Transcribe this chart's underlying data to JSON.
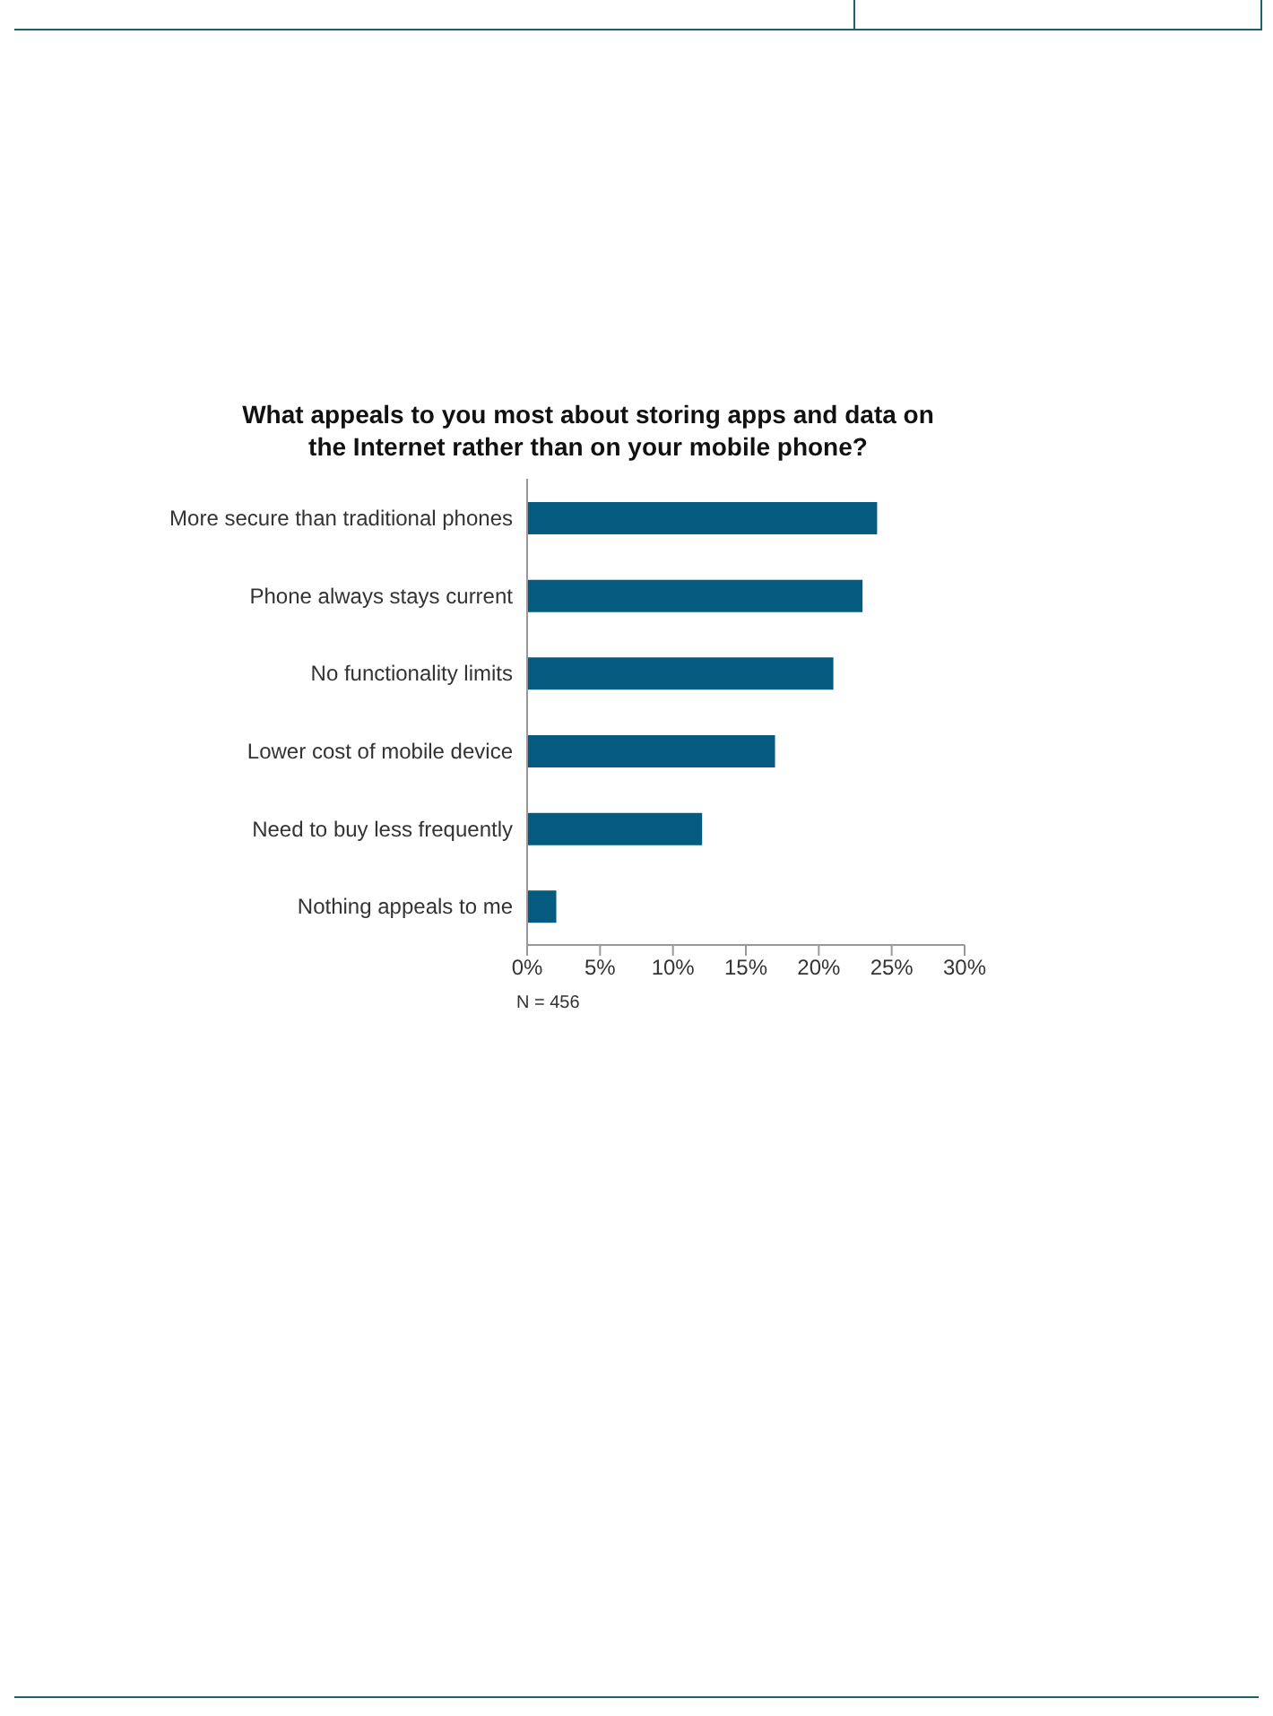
{
  "chart_data": {
    "type": "bar",
    "orientation": "horizontal",
    "title": "What appeals to you most about storing apps and data on the Internet rather than on your mobile phone?",
    "categories": [
      "More secure than traditional phones",
      "Phone always stays current",
      "No functionality limits",
      "Lower cost of mobile device",
      "Need to buy less frequently",
      "Nothing appeals to me"
    ],
    "values": [
      24,
      23,
      21,
      17,
      12,
      2
    ],
    "color": "#055a80",
    "xlim": [
      0,
      30
    ],
    "xticks": [
      {
        "value": 0,
        "label": "0%"
      },
      {
        "value": 5,
        "label": "5%"
      },
      {
        "value": 10,
        "label": "10%"
      },
      {
        "value": 15,
        "label": "15%"
      },
      {
        "value": 20,
        "label": "20%"
      },
      {
        "value": 25,
        "label": "25%"
      },
      {
        "value": 30,
        "label": "30%"
      }
    ],
    "grid": false,
    "legend": false,
    "annotations": [
      "N = 456"
    ]
  }
}
